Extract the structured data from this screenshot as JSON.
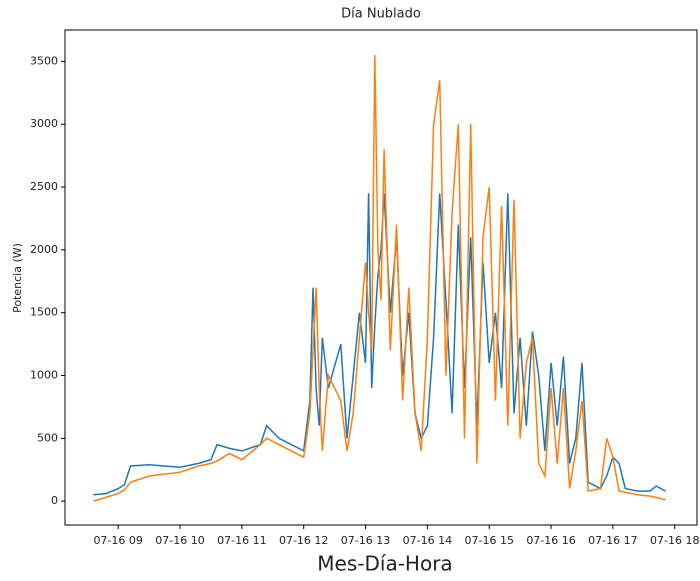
{
  "chart_data": {
    "type": "line",
    "title": "Día Nublado",
    "x_label": "Mes-Día-Hora",
    "y_label": "Potencia (W)",
    "x": [
      8.6,
      8.8,
      9.0,
      9.1,
      9.2,
      9.5,
      10.0,
      10.3,
      10.5,
      10.6,
      10.8,
      11.0,
      11.3,
      11.4,
      11.6,
      11.8,
      12.0,
      12.1,
      12.15,
      12.2,
      12.25,
      12.3,
      12.4,
      12.6,
      12.7,
      12.8,
      12.9,
      13.0,
      13.05,
      13.1,
      13.15,
      13.2,
      13.25,
      13.3,
      13.4,
      13.5,
      13.6,
      13.7,
      13.8,
      13.9,
      14.0,
      14.1,
      14.2,
      14.3,
      14.4,
      14.5,
      14.6,
      14.7,
      14.8,
      14.9,
      15.0,
      15.1,
      15.2,
      15.3,
      15.4,
      15.5,
      15.6,
      15.7,
      15.8,
      15.9,
      16.0,
      16.1,
      16.2,
      16.3,
      16.4,
      16.5,
      16.6,
      16.8,
      16.9,
      17.0,
      17.1,
      17.2,
      17.3,
      17.4,
      17.6,
      17.7,
      17.85
    ],
    "series": [
      {
        "color": "#1f77b4",
        "values": [
          50,
          60,
          100,
          130,
          280,
          290,
          270,
          300,
          330,
          450,
          420,
          400,
          450,
          600,
          500,
          450,
          400,
          800,
          1700,
          900,
          600,
          1300,
          900,
          1250,
          500,
          1000,
          1500,
          1100,
          2450,
          900,
          1400,
          1800,
          2000,
          2450,
          1500,
          2100,
          1000,
          1500,
          700,
          500,
          600,
          1300,
          2450,
          1600,
          700,
          2200,
          900,
          2100,
          600,
          1900,
          1100,
          1500,
          900,
          2450,
          700,
          1300,
          600,
          1350,
          1000,
          400,
          1100,
          600,
          1150,
          300,
          500,
          1100,
          150,
          100,
          200,
          350,
          300,
          100,
          90,
          80,
          80,
          120,
          80
        ]
      },
      {
        "color": "#ff7f0e",
        "values": [
          0,
          30,
          60,
          90,
          150,
          200,
          230,
          280,
          300,
          320,
          380,
          330,
          450,
          500,
          450,
          400,
          350,
          700,
          1200,
          1700,
          900,
          400,
          1000,
          800,
          400,
          700,
          1300,
          1900,
          1500,
          1200,
          3550,
          2000,
          1600,
          2800,
          1200,
          2200,
          800,
          1700,
          700,
          400,
          1300,
          3000,
          3350,
          1000,
          2300,
          3000,
          500,
          3000,
          300,
          2100,
          2500,
          800,
          2350,
          600,
          2400,
          500,
          1100,
          1300,
          300,
          200,
          900,
          300,
          900,
          100,
          400,
          800,
          80,
          100,
          500,
          350,
          80,
          70,
          60,
          50,
          40,
          30,
          10
        ]
      }
    ],
    "xlim": [
      8.14,
      18.36
    ],
    "xticks": [
      {
        "value": 9,
        "label": "07-16 09"
      },
      {
        "value": 10,
        "label": "07-16 10"
      },
      {
        "value": 11,
        "label": "07-16 11"
      },
      {
        "value": 12,
        "label": "07-16 12"
      },
      {
        "value": 13,
        "label": "07-16 13"
      },
      {
        "value": 14,
        "label": "07-16 14"
      },
      {
        "value": 15,
        "label": "07-16 15"
      },
      {
        "value": 16,
        "label": "07-16 16"
      },
      {
        "value": 17,
        "label": "07-16 17"
      },
      {
        "value": 18,
        "label": "07-16 18"
      }
    ],
    "ylim": [
      -190,
      3750
    ],
    "yticks": [
      0,
      500,
      1000,
      1500,
      2000,
      2500,
      3000,
      3500
    ]
  }
}
